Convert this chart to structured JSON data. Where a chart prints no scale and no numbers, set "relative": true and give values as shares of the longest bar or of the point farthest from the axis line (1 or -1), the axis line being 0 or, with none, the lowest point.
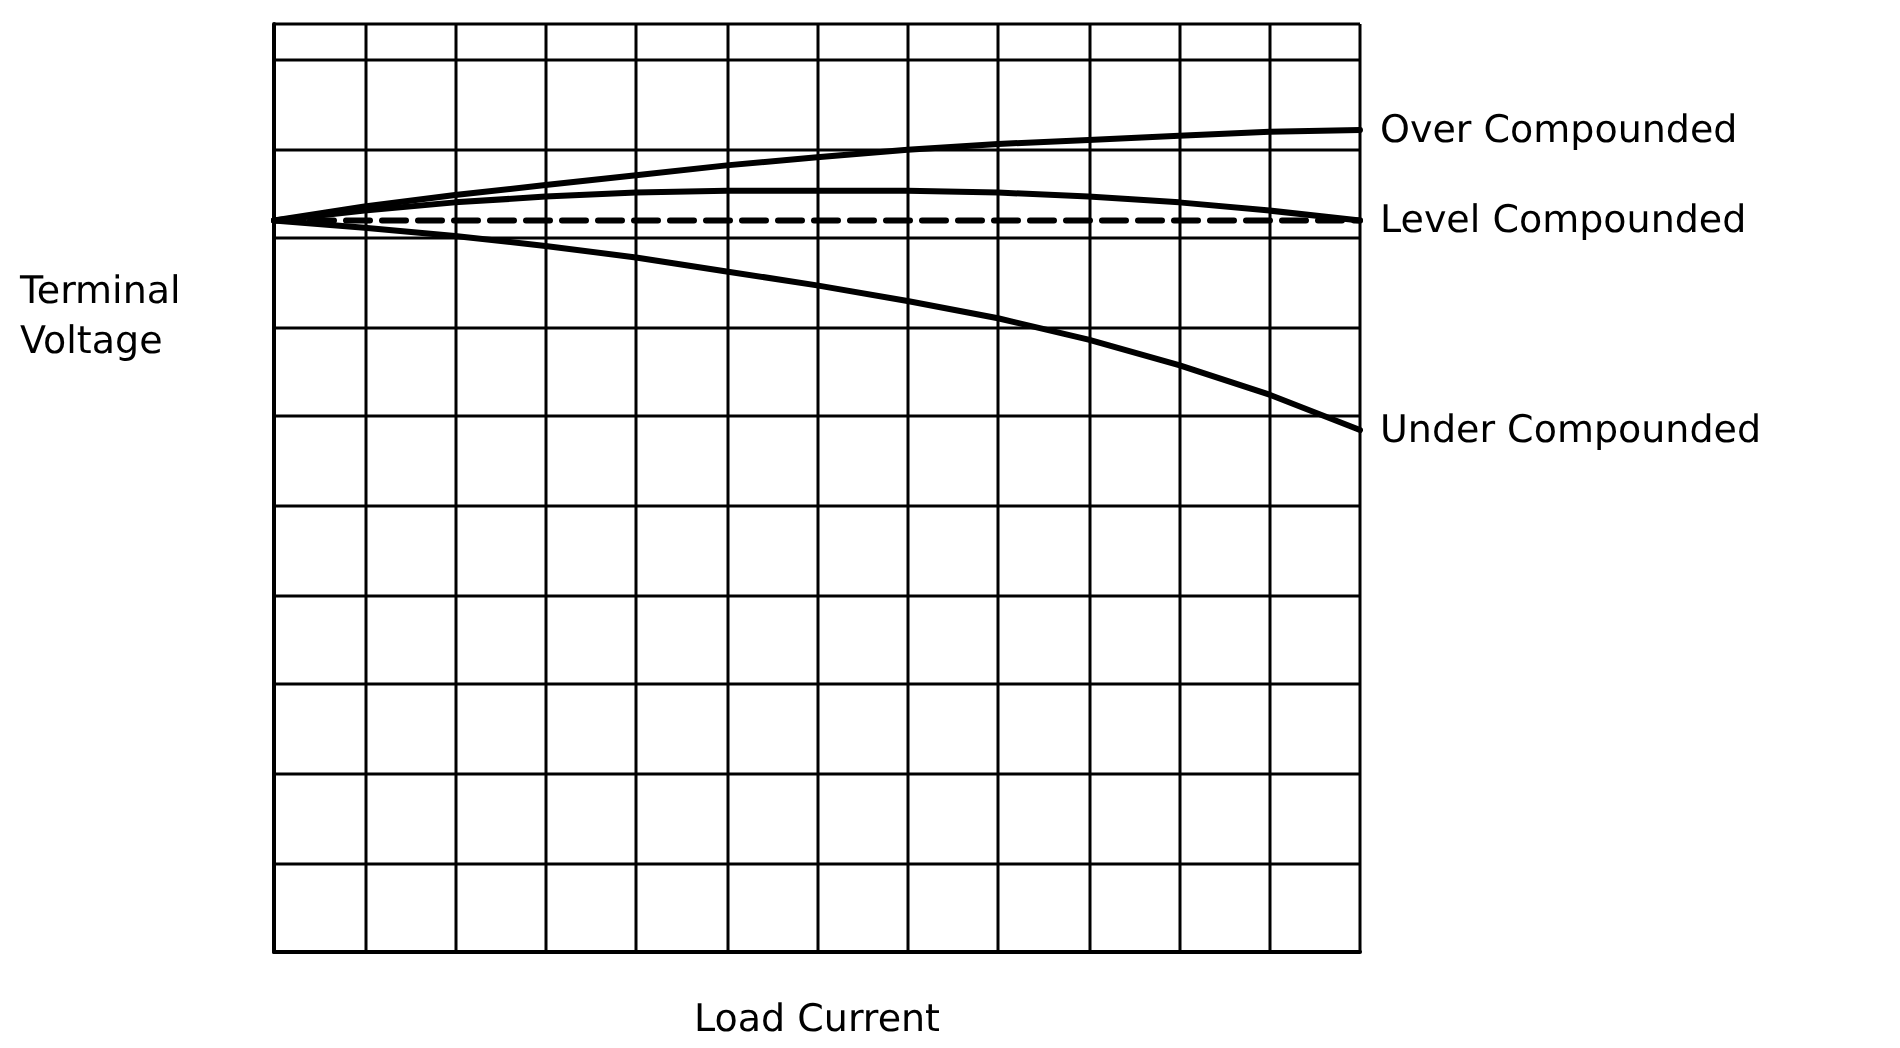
{
  "chart_data": {
    "type": "line",
    "relative": true,
    "xlabel": "Load Current",
    "ylabel": "Terminal Voltage",
    "categories": [
      null,
      null,
      null,
      null,
      null,
      null,
      null,
      null,
      null,
      null,
      null,
      null,
      null
    ],
    "grid": true,
    "legend": false,
    "marker": "none",
    "series": [
      {
        "name": "Over Compounded",
        "color": "#000000",
        "values": [
          0.89,
          0.907,
          0.921,
          0.933,
          0.945,
          0.957,
          0.967,
          0.976,
          0.983,
          0.988,
          0.993,
          0.998,
          1
        ]
      },
      {
        "name": "Level Compounded",
        "color": "#000000",
        "values": [
          0.89,
          0.902,
          0.912,
          0.919,
          0.924,
          0.926,
          0.926,
          0.926,
          0.924,
          0.919,
          0.912,
          0.902,
          0.89
        ]
      },
      {
        "color": "#000000",
        "line_style": "dashed",
        "values": [
          0.89,
          0.89,
          0.89,
          0.89,
          0.89,
          0.89,
          0.89,
          0.89,
          0.89,
          0.89,
          0.89,
          0.89,
          0.89
        ]
      },
      {
        "name": "Under Compounded",
        "color": "#000000",
        "values": [
          0.89,
          0.881,
          0.871,
          0.859,
          0.845,
          0.828,
          0.811,
          0.792,
          0.771,
          0.745,
          0.714,
          0.678,
          0.635
        ]
      }
    ]
  }
}
